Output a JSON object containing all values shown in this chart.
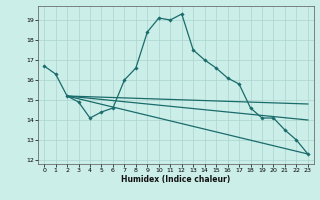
{
  "xlabel": "Humidex (Indice chaleur)",
  "bg_color": "#cceee8",
  "grid_color": "#aad4ce",
  "line_color": "#1a6b6b",
  "xlim": [
    -0.5,
    23.5
  ],
  "ylim": [
    11.8,
    19.7
  ],
  "yticks": [
    12,
    13,
    14,
    15,
    16,
    17,
    18,
    19
  ],
  "xticks": [
    0,
    1,
    2,
    3,
    4,
    5,
    6,
    7,
    8,
    9,
    10,
    11,
    12,
    13,
    14,
    15,
    16,
    17,
    18,
    19,
    20,
    21,
    22,
    23
  ],
  "series_main": [
    [
      0,
      16.7
    ],
    [
      1,
      16.3
    ],
    [
      2,
      15.2
    ],
    [
      3,
      14.9
    ],
    [
      4,
      14.1
    ],
    [
      5,
      14.4
    ],
    [
      6,
      14.6
    ],
    [
      7,
      16.0
    ],
    [
      8,
      16.6
    ],
    [
      9,
      18.4
    ],
    [
      10,
      19.1
    ],
    [
      11,
      19.0
    ],
    [
      12,
      19.3
    ],
    [
      13,
      17.5
    ],
    [
      14,
      17.0
    ],
    [
      15,
      16.6
    ],
    [
      16,
      16.1
    ],
    [
      17,
      15.8
    ],
    [
      18,
      14.6
    ],
    [
      19,
      14.1
    ],
    [
      20,
      14.1
    ],
    [
      21,
      13.5
    ],
    [
      22,
      13.0
    ],
    [
      23,
      12.3
    ]
  ],
  "line_flat": [
    [
      2,
      15.2
    ],
    [
      23,
      14.8
    ]
  ],
  "line_mid": [
    [
      2,
      15.2
    ],
    [
      23,
      14.0
    ]
  ],
  "line_steep": [
    [
      2,
      15.2
    ],
    [
      23,
      12.3
    ]
  ]
}
